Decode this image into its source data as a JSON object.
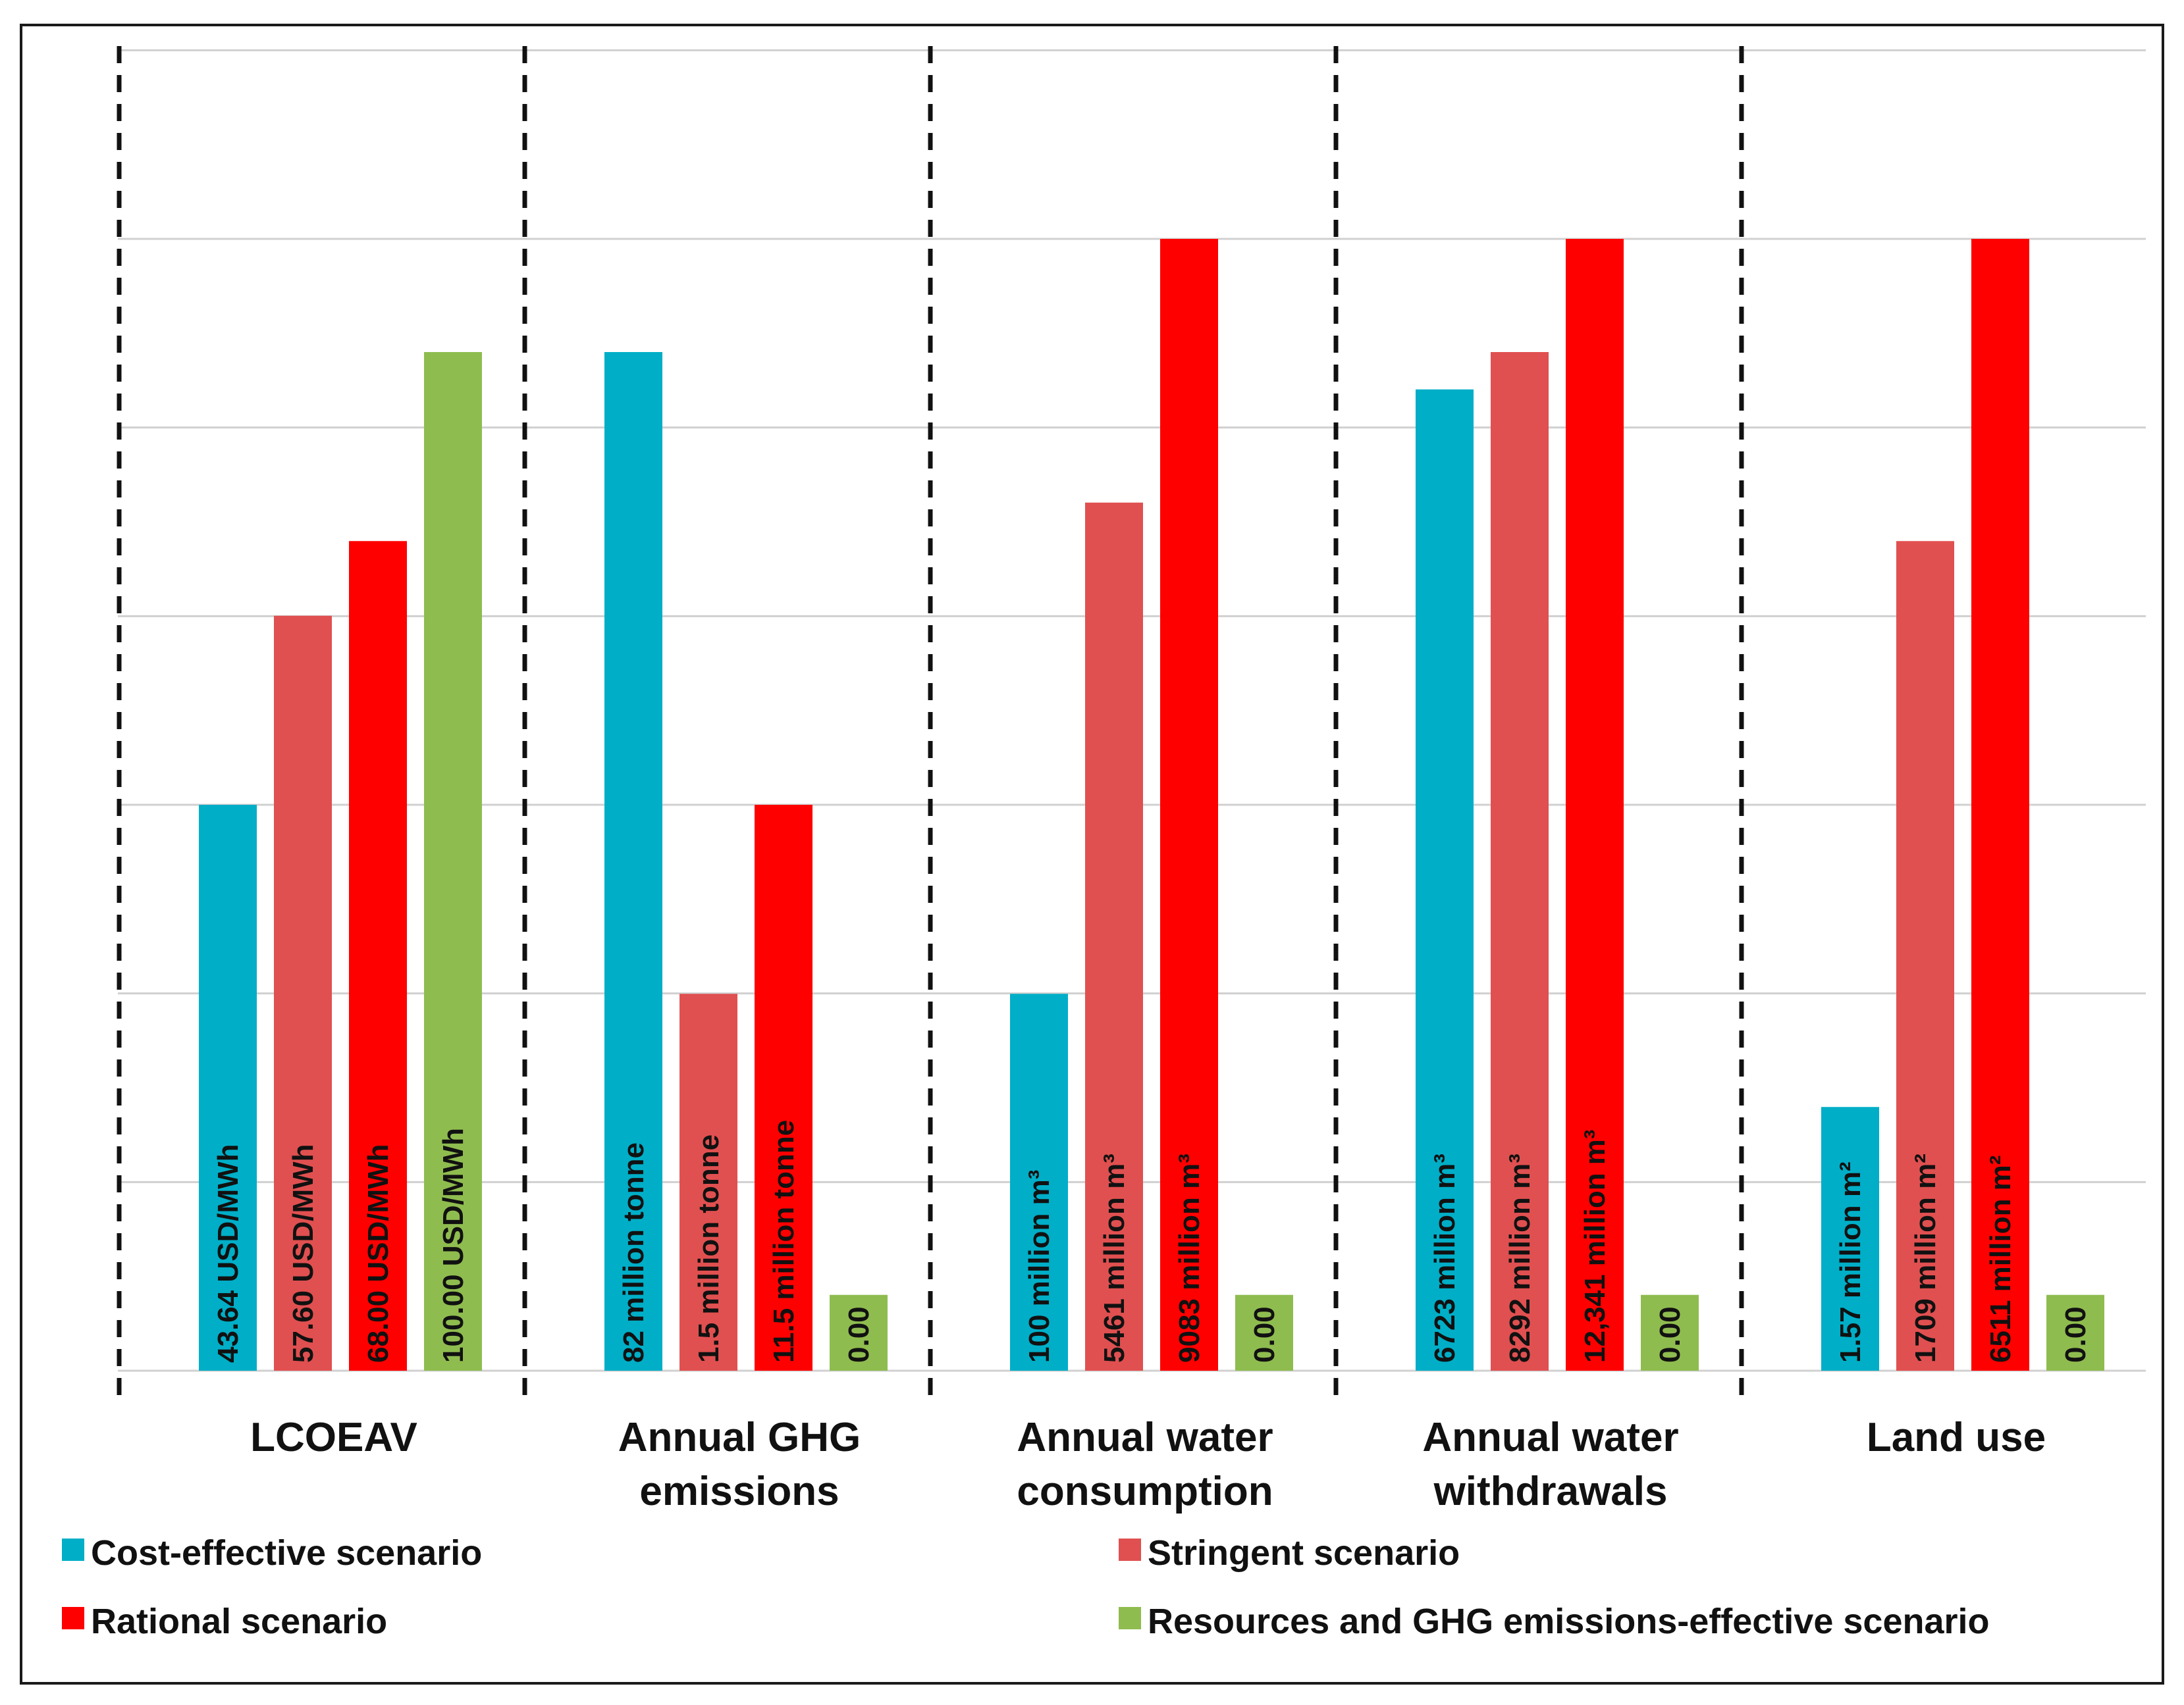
{
  "chart_data": {
    "type": "bar",
    "title": "",
    "xlabel": "",
    "ylabel": "",
    "ylim": [
      0,
      100
    ],
    "grid": true,
    "legend_position": "bottom",
    "categories": [
      [
        "LCOEAV"
      ],
      [
        "Annual GHG",
        "emissions"
      ],
      [
        "Annual water",
        "consumption"
      ],
      [
        "Annual water",
        "withdrawals"
      ],
      [
        "Land use"
      ]
    ],
    "series": [
      {
        "name": "Cost-effective scenario",
        "color": "#00AEC7",
        "values": [
          50,
          90,
          33.3,
          86.7,
          23.3
        ],
        "labels": [
          "43.64 USD/MWh",
          "82 million tonne",
          "100 million m³",
          "6723 million m³",
          "1.57 million m²"
        ]
      },
      {
        "name": "Stringent scenario",
        "color": "#E05050",
        "values": [
          66.7,
          33.3,
          76.7,
          90,
          73.3
        ],
        "labels": [
          "57.60 USD/MWh",
          "1.5 million tonne",
          "5461 million m³",
          "8292 million m³",
          "1709 million m²"
        ]
      },
      {
        "name": "Rational scenario",
        "color": "#FF0000",
        "values": [
          73.3,
          50,
          100,
          100,
          100
        ],
        "labels": [
          "68.00 USD/MWh",
          "11.5 million tonne",
          "9083 million m³",
          "12,341 million m³",
          "6511 million m²"
        ]
      },
      {
        "name": "Resources and GHG emissions-effective scenario",
        "color": "#8FBC4F",
        "values": [
          90,
          6.7,
          6.7,
          6.7,
          6.7
        ],
        "labels": [
          "100.00 USD/MWh",
          "0.00",
          "0.00",
          "0.00",
          "0.00"
        ]
      }
    ]
  }
}
